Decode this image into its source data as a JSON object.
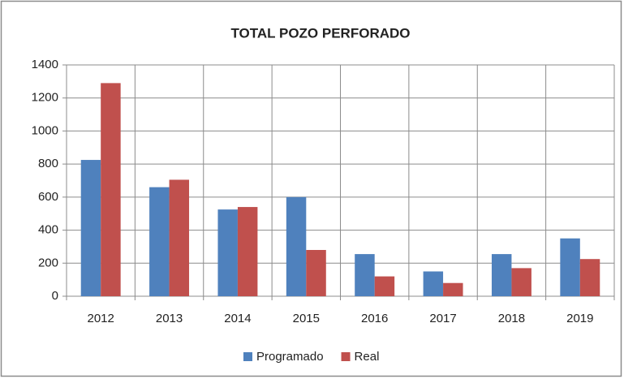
{
  "chart_data": {
    "type": "bar",
    "title": "TOTAL POZO PERFORADO",
    "categories": [
      "2012",
      "2013",
      "2014",
      "2015",
      "2016",
      "2017",
      "2018",
      "2019"
    ],
    "series": [
      {
        "name": "Programado",
        "color": "#4f81bd",
        "values": [
          825,
          660,
          525,
          600,
          255,
          150,
          255,
          350
        ]
      },
      {
        "name": "Real",
        "color": "#c0504d",
        "values": [
          1290,
          705,
          540,
          280,
          120,
          80,
          170,
          225
        ]
      }
    ],
    "ylim": [
      0,
      1400
    ],
    "yticks": [
      0,
      200,
      400,
      600,
      800,
      1000,
      1200,
      1400
    ],
    "grid": true,
    "legend": "bottom"
  }
}
